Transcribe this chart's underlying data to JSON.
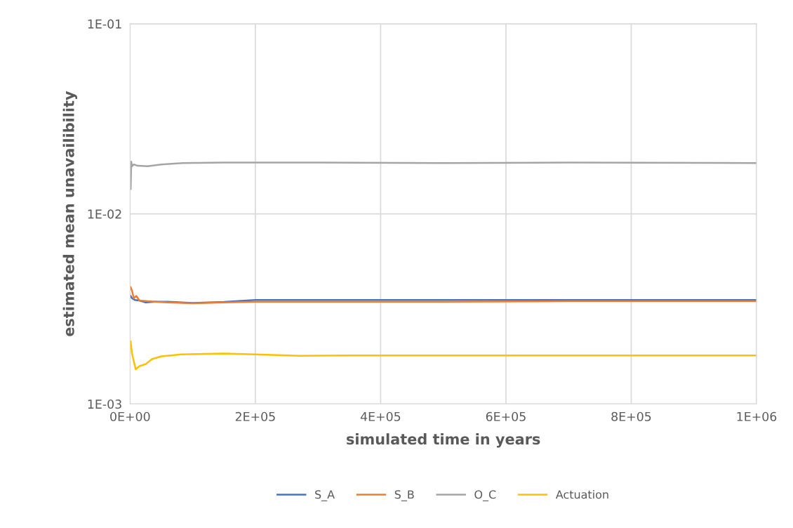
{
  "chart_data": {
    "type": "line",
    "xlabel": "simulated time in years",
    "ylabel": "estimated mean unavailibility",
    "log": "y",
    "grid": true,
    "legend": "bottom",
    "marker": "none",
    "line_style": "solid",
    "xlim": [
      0,
      1000000
    ],
    "xticks": [
      {
        "value": 0,
        "label": "0E+00"
      },
      {
        "value": 200000,
        "label": "2E+05"
      },
      {
        "value": 400000,
        "label": "4E+05"
      },
      {
        "value": 600000,
        "label": "6E+05"
      },
      {
        "value": 800000,
        "label": "8E+05"
      },
      {
        "value": 1000000,
        "label": "1E+06"
      }
    ],
    "ylim": [
      0.001,
      0.1
    ],
    "yticks": [
      {
        "value": 0.001,
        "label": "1E-03"
      },
      {
        "value": 0.01,
        "label": "1E-02"
      },
      {
        "value": 0.1,
        "label": "1E-01"
      }
    ],
    "series": [
      {
        "name": "S_A",
        "color": "#4472c4",
        "x": [
          1000,
          3000,
          8000,
          15000,
          25000,
          40000,
          60000,
          100000,
          150000,
          200000,
          300000,
          500000,
          700000,
          1000000
        ],
        "values": [
          0.00369,
          0.0036,
          0.00352,
          0.0035,
          0.00342,
          0.00345,
          0.00345,
          0.0034,
          0.00344,
          0.00352,
          0.00352,
          0.00352,
          0.00352,
          0.00352
        ]
      },
      {
        "name": "S_B",
        "color": "#ed7d31",
        "x": [
          1000,
          3000,
          6000,
          10000,
          15000,
          25000,
          40000,
          60000,
          100000,
          150000,
          200000,
          300000,
          500000,
          700000,
          1000000
        ],
        "values": [
          0.00411,
          0.00395,
          0.0036,
          0.0037,
          0.0035,
          0.00348,
          0.00345,
          0.00342,
          0.00338,
          0.00342,
          0.00345,
          0.00345,
          0.00345,
          0.00347,
          0.00347
        ]
      },
      {
        "name": "O_C",
        "color": "#a5a5a5",
        "x": [
          1000,
          2000,
          3000,
          6000,
          12000,
          28000,
          50000,
          84000,
          150000,
          300000,
          500000,
          700000,
          1000000
        ],
        "values": [
          0.0135,
          0.0188,
          0.0178,
          0.0182,
          0.0179,
          0.0178,
          0.0182,
          0.0185,
          0.0186,
          0.0186,
          0.0185,
          0.0186,
          0.0185
        ]
      },
      {
        "name": "Actuation",
        "color": "#ffc000",
        "x": [
          1000,
          3000,
          9000,
          15000,
          25000,
          35000,
          50000,
          80000,
          150000,
          200000,
          270000,
          350000,
          500000,
          700000,
          1000000
        ],
        "values": [
          0.00213,
          0.00185,
          0.00152,
          0.00158,
          0.00162,
          0.00172,
          0.00178,
          0.00182,
          0.00184,
          0.00182,
          0.00179,
          0.0018,
          0.0018,
          0.0018,
          0.0018
        ]
      }
    ]
  }
}
